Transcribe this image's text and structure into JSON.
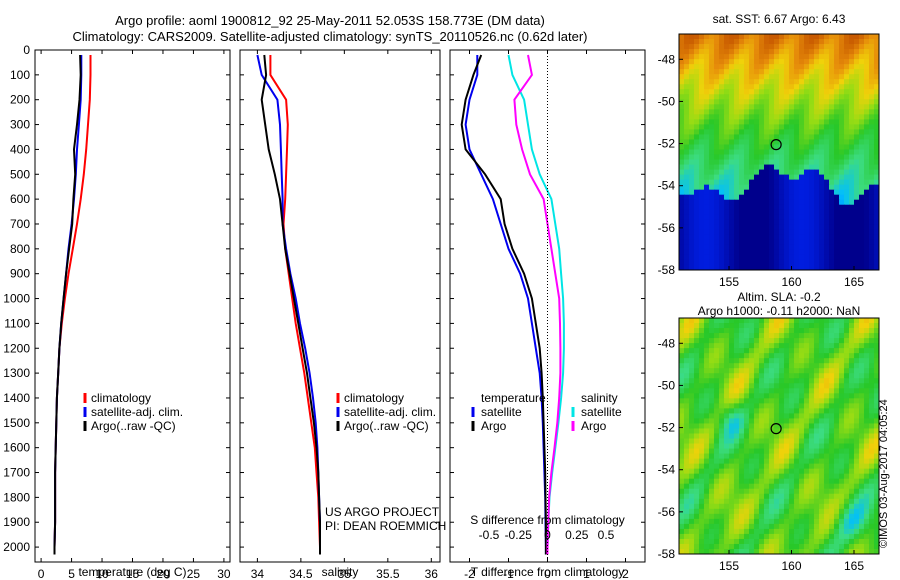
{
  "header": {
    "title_line1": "Argo profile: aoml 1900812_92 25-May-2011 52.053S 158.773E (DM data)",
    "title_line2": "Climatology: CARS2009. Satellite-adjusted climatology: synTS_20110526.nc (0.62d later)"
  },
  "credit": "©IMOS 03-Aug-2017 04:05:24",
  "colors": {
    "climatology": "#ff0000",
    "satellite": "#0000ee",
    "argo": "#000000",
    "salinity_satellite": "#00e5e5",
    "salinity_argo": "#ff00ff"
  },
  "chart_data": [
    {
      "type": "line",
      "panel": "temperature",
      "xlabel": "temperature (deg C)",
      "xlim": [
        -1,
        31
      ],
      "xticks": [
        0,
        5,
        10,
        15,
        20,
        25,
        30
      ],
      "xtick_labels": [
        "0",
        "5",
        "10",
        "15",
        "20",
        "25",
        "30"
      ],
      "ylim": [
        2060,
        0
      ],
      "yticks": [
        0,
        100,
        200,
        300,
        400,
        500,
        600,
        700,
        800,
        900,
        1000,
        1100,
        1200,
        1300,
        1400,
        1500,
        1600,
        1700,
        1800,
        1900,
        2000
      ],
      "ytick_labels": [
        "0",
        "100",
        "200",
        "300",
        "400",
        "500",
        "600",
        "700",
        "800",
        "900",
        "1000",
        "1100",
        "1200",
        "1300",
        "1400",
        "1500",
        "1600",
        "1700",
        "1800",
        "1900",
        "2000"
      ],
      "legend": [
        "climatology",
        "satellite-adj. clim.",
        "Argo(..raw -QC)"
      ],
      "series": [
        {
          "name": "climatology",
          "color": "#ff0000",
          "x": [
            8.1,
            8.1,
            8.0,
            7.7,
            7.4,
            7.0,
            6.5,
            5.9,
            5.2,
            4.5,
            3.9,
            3.4,
            3.0,
            2.8,
            2.6,
            2.5,
            2.4,
            2.3,
            2.3,
            2.3,
            2.2,
            2.2
          ],
          "y": [
            20,
            100,
            200,
            300,
            400,
            500,
            600,
            700,
            800,
            900,
            1000,
            1100,
            1200,
            1300,
            1400,
            1500,
            1600,
            1700,
            1800,
            1900,
            2000,
            2030
          ]
        },
        {
          "name": "satellite-adj. clim.",
          "color": "#0000ee",
          "x": [
            6.6,
            6.6,
            6.5,
            6.2,
            5.9,
            5.7,
            5.4,
            5.0,
            4.5,
            4.1,
            3.7,
            3.3,
            3.0,
            2.8,
            2.6,
            2.5,
            2.4,
            2.3,
            2.3,
            2.3,
            2.2,
            2.2
          ],
          "y": [
            20,
            100,
            200,
            300,
            400,
            500,
            600,
            700,
            800,
            900,
            1000,
            1100,
            1200,
            1300,
            1400,
            1500,
            1600,
            1700,
            1800,
            1900,
            2000,
            2030
          ]
        },
        {
          "name": "Argo(..raw -QC)",
          "color": "#000000",
          "x": [
            6.4,
            6.5,
            6.3,
            5.9,
            5.4,
            5.6,
            5.3,
            5.1,
            4.6,
            4.1,
            3.7,
            3.3,
            3.0,
            2.8,
            2.6,
            2.5,
            2.4,
            2.3,
            2.3,
            2.3,
            2.2,
            2.2
          ],
          "y": [
            20,
            100,
            200,
            300,
            400,
            500,
            600,
            700,
            800,
            900,
            1000,
            1100,
            1200,
            1300,
            1400,
            1500,
            1600,
            1700,
            1800,
            1900,
            2000,
            2030
          ]
        }
      ]
    },
    {
      "type": "line",
      "panel": "salinity",
      "xlabel": "salinity",
      "xlim": [
        33.8,
        36.1
      ],
      "xticks": [
        34,
        34.5,
        35,
        35.5,
        36
      ],
      "xtick_labels": [
        "34",
        "34.5",
        "35",
        "35.5",
        "36"
      ],
      "ylim": [
        2060,
        0
      ],
      "legend": [
        "climatology",
        "satellite-adj. clim.",
        "Argo(..raw -QC)"
      ],
      "annotation": [
        "US ARGO PROJECT",
        "PI: DEAN ROEMMICH"
      ],
      "series": [
        {
          "name": "climatology",
          "color": "#ff0000",
          "x": [
            34.15,
            34.15,
            34.33,
            34.35,
            34.34,
            34.33,
            34.32,
            34.3,
            34.32,
            34.36,
            34.4,
            34.44,
            34.49,
            34.54,
            34.58,
            34.62,
            34.66,
            34.68,
            34.7,
            34.71,
            34.72,
            34.72
          ],
          "y": [
            20,
            100,
            200,
            300,
            400,
            500,
            600,
            700,
            800,
            900,
            1000,
            1100,
            1200,
            1300,
            1400,
            1500,
            1600,
            1700,
            1800,
            1900,
            2000,
            2030
          ]
        },
        {
          "name": "satellite-adj. clim.",
          "color": "#0000ee",
          "x": [
            34.0,
            34.05,
            34.23,
            34.26,
            34.27,
            34.28,
            34.29,
            34.29,
            34.33,
            34.38,
            34.44,
            34.49,
            34.55,
            34.6,
            34.64,
            34.67,
            34.69,
            34.7,
            34.71,
            34.72,
            34.72,
            34.72
          ],
          "y": [
            20,
            100,
            200,
            300,
            400,
            500,
            600,
            700,
            800,
            900,
            1000,
            1100,
            1200,
            1300,
            1400,
            1500,
            1600,
            1700,
            1800,
            1900,
            2000,
            2030
          ]
        },
        {
          "name": "Argo(..raw -QC)",
          "color": "#000000",
          "x": [
            34.08,
            34.1,
            34.05,
            34.09,
            34.13,
            34.2,
            34.26,
            34.29,
            34.32,
            34.37,
            34.42,
            34.47,
            34.52,
            34.57,
            34.61,
            34.65,
            34.68,
            34.7,
            34.71,
            34.72,
            34.72,
            34.72
          ],
          "y": [
            20,
            100,
            200,
            300,
            400,
            500,
            600,
            700,
            800,
            900,
            1000,
            1100,
            1200,
            1300,
            1400,
            1500,
            1600,
            1700,
            1800,
            1900,
            2000,
            2030
          ]
        }
      ]
    },
    {
      "type": "line",
      "panel": "difference",
      "xlabel": "T difference from climatology",
      "xlabel_top": "S difference from climatology",
      "xlim": [
        -2.5,
        2.5
      ],
      "xticks": [
        -2,
        -1,
        0,
        1,
        2
      ],
      "xtick_labels": [
        "-2",
        "-1",
        "0",
        "1",
        "2"
      ],
      "s_tick_positions": [
        -1.5,
        -0.75,
        0.75,
        1.5
      ],
      "s_tick_labels": [
        "-0.5",
        "-0.25",
        "0.25",
        "0.5"
      ],
      "ylim": [
        2060,
        0
      ],
      "legend_temperature": [
        "temperature",
        "satellite",
        "Argo"
      ],
      "legend_salinity": [
        "salinity",
        "satellite",
        "Argo"
      ],
      "series": [
        {
          "name": "temperature satellite",
          "color": "#0000ee",
          "x": [
            -1.8,
            -1.8,
            -2.0,
            -2.1,
            -2.0,
            -1.7,
            -1.4,
            -1.2,
            -1.0,
            -0.7,
            -0.5,
            -0.4,
            -0.3,
            -0.2,
            -0.15,
            -0.12,
            -0.1,
            -0.08,
            -0.06,
            -0.05,
            -0.04,
            -0.04
          ],
          "y": [
            20,
            100,
            200,
            300,
            400,
            500,
            600,
            700,
            800,
            900,
            1000,
            1100,
            1200,
            1300,
            1400,
            1500,
            1600,
            1700,
            1800,
            1900,
            2000,
            2030
          ]
        },
        {
          "name": "temperature Argo",
          "color": "#000000",
          "x": [
            -1.7,
            -1.9,
            -2.1,
            -2.2,
            -2.1,
            -1.6,
            -1.2,
            -1.1,
            -0.9,
            -0.6,
            -0.4,
            -0.3,
            -0.2,
            -0.15,
            -0.12,
            -0.1,
            -0.08,
            -0.06,
            -0.05,
            -0.04,
            -0.04,
            -0.04
          ],
          "y": [
            20,
            100,
            200,
            300,
            400,
            500,
            600,
            700,
            800,
            900,
            1000,
            1100,
            1200,
            1300,
            1400,
            1500,
            1600,
            1700,
            1800,
            1900,
            2000,
            2030
          ]
        },
        {
          "name": "salinity satellite",
          "color": "#00e5e5",
          "x": [
            -1.0,
            -0.9,
            -0.6,
            -0.5,
            -0.4,
            -0.2,
            0.1,
            0.2,
            0.3,
            0.35,
            0.4,
            0.42,
            0.42,
            0.4,
            0.35,
            0.28,
            0.2,
            0.12,
            0.05,
            0.02,
            0.0,
            0.0
          ],
          "y": [
            20,
            100,
            200,
            300,
            400,
            500,
            600,
            700,
            800,
            900,
            1000,
            1100,
            1200,
            1300,
            1400,
            1500,
            1600,
            1700,
            1800,
            1900,
            2000,
            2030
          ]
        },
        {
          "name": "salinity Argo",
          "color": "#ff00ff",
          "x": [
            -0.5,
            -0.4,
            -0.85,
            -0.8,
            -0.65,
            -0.45,
            -0.1,
            0.0,
            0.1,
            0.2,
            0.3,
            0.32,
            0.33,
            0.33,
            0.3,
            0.25,
            0.18,
            0.1,
            0.04,
            0.02,
            0.0,
            0.0
          ],
          "y": [
            20,
            100,
            200,
            300,
            400,
            500,
            600,
            700,
            800,
            900,
            1000,
            1100,
            1200,
            1300,
            1400,
            1500,
            1600,
            1700,
            1800,
            1900,
            2000,
            2030
          ]
        }
      ]
    },
    {
      "type": "heatmap",
      "panel": "sst-map",
      "title": "sat. SST: 6.67 Argo: 6.43",
      "xlim": [
        151,
        167
      ],
      "ylim": [
        -58,
        -46.8
      ],
      "xticks": [
        155,
        160,
        165
      ],
      "xtick_labels": [
        "155",
        "160",
        "165"
      ],
      "yticks": [
        -48,
        -50,
        -52,
        -54,
        -56,
        -58
      ],
      "ytick_labels": [
        "-48",
        "-50",
        "-52",
        "-54",
        "-56",
        "-58"
      ],
      "marker": {
        "lon": 158.77,
        "lat": -52.05
      }
    },
    {
      "type": "heatmap",
      "panel": "sla-map",
      "title_line1": "Altim. SLA: -0.2",
      "title_line2": "Argo h1000: -0.11 h2000: NaN",
      "xlim": [
        151,
        167
      ],
      "ylim": [
        -58,
        -46.8
      ],
      "xticks": [
        155,
        160,
        165
      ],
      "xtick_labels": [
        "155",
        "160",
        "165"
      ],
      "yticks": [
        -48,
        -50,
        -52,
        -54,
        -56,
        -58
      ],
      "ytick_labels": [
        "-48",
        "-50",
        "-52",
        "-54",
        "-56",
        "-58"
      ],
      "marker": {
        "lon": 158.77,
        "lat": -52.05
      }
    }
  ]
}
